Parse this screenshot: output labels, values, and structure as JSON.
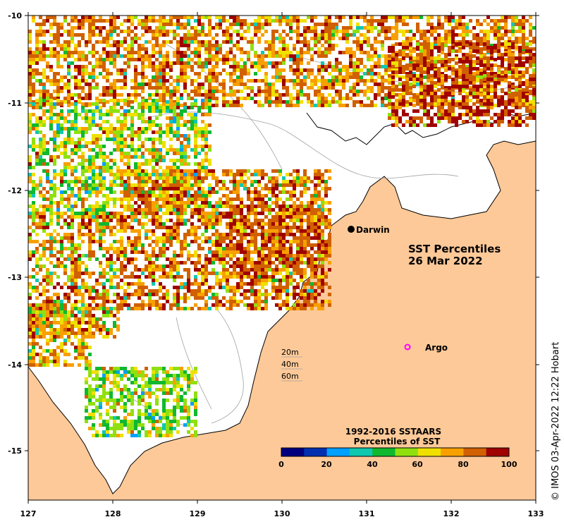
{
  "map": {
    "title_line1": "SST Percentiles",
    "title_line2": "26 Mar 2022",
    "credit": "© IMOS 03-Apr-2022 12:22 Hobart",
    "colors": {
      "land": "#fdc998",
      "no_data": "#ffffff",
      "coast": "#000000",
      "bathymetry": "#a0a0a0",
      "frame": "#000000"
    }
  },
  "axes": {
    "longitude_ticks": [
      "127",
      "128",
      "129",
      "130",
      "131",
      "132",
      "133"
    ],
    "latitude_ticks": [
      "-10",
      "-11",
      "-12",
      "-13",
      "-14",
      "-15"
    ]
  },
  "places": [
    {
      "name": "Darwin",
      "marker": "city-dot",
      "lon": 130.83,
      "lat": -12.46
    },
    {
      "name": "Argo",
      "marker": "argo-circle",
      "lon": 131.53,
      "lat": -13.82
    }
  ],
  "bathymetry_legend": [
    "20m",
    "40m",
    "60m"
  ],
  "colorbar": {
    "title_line1": "1992-2016 SSTAARS",
    "title_line2": "Percentiles of SST",
    "colors": [
      "#00007f",
      "#0030b0",
      "#00a0ff",
      "#10c8b0",
      "#10b830",
      "#90e010",
      "#f0e000",
      "#f8a000",
      "#d06000",
      "#a00000"
    ],
    "tick_labels": [
      "0",
      "20",
      "40",
      "60",
      "80",
      "100"
    ]
  }
}
